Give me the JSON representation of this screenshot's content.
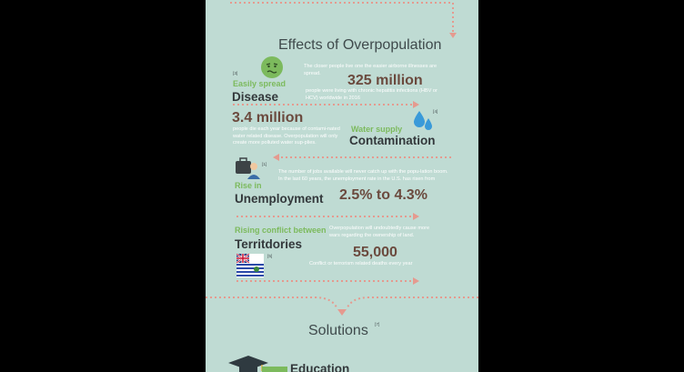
{
  "sections": {
    "effects_title": "Effects of Overpopulation",
    "solutions_title": "Solutions",
    "solutions_ref": "[7]"
  },
  "disease": {
    "ref": "[3]",
    "label": "Easily spread",
    "title": "Disease",
    "desc": "The closer people live one the easier airborne illnesses are spread.",
    "stat": "325 million",
    "stat_desc": "people were living with chronic hepatitis infections (HBV or HCV) worldwide in 2016"
  },
  "water": {
    "stat": "3.4 million",
    "stat_desc": "people die each year because of contami-nated water related disease. Overpopulation will only create more polluted water sup-plies.",
    "ref": "[4]",
    "label": "Water supply",
    "title": "Contamination"
  },
  "unemployment": {
    "ref": "[1]",
    "label": "Rise in",
    "title": "Unemployment",
    "desc": "The number of jobs available will never catch up with the popu-lation boom. In the last 60 years, the unemployment rate in the U.S. has risen from",
    "stat": "2.5% to 4.3%"
  },
  "territories": {
    "label": "Rising conflict between",
    "title": "Territdories",
    "desc": "Overpopulation will undoubtedly cause more wars regarding the ownership of land.",
    "ref": "[5]",
    "stat": "55,000",
    "stat_desc": "Conflict or terrorism related deaths every year"
  },
  "education": {
    "label": "Education"
  },
  "colors": {
    "background": "#bfdbd3",
    "arrow": "#e59a8f",
    "accent_green": "#7cba5d",
    "stat_brown": "#6b4a3e"
  }
}
